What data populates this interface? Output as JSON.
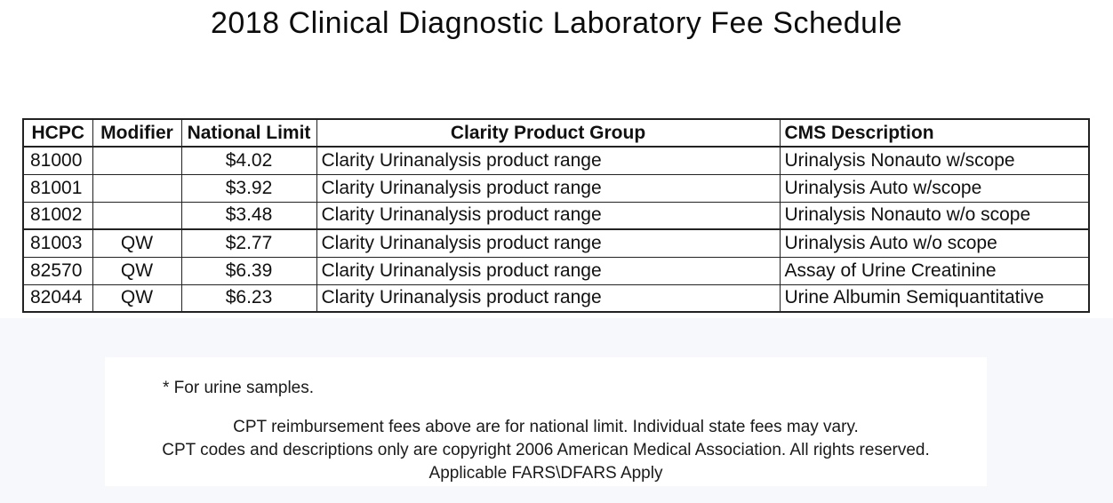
{
  "title": "2018 Clinical Diagnostic Laboratory Fee Schedule",
  "table": {
    "columns": [
      "HCPC",
      "Modifier",
      "National Limit",
      "Clarity Product Group",
      "CMS Description"
    ],
    "rows": [
      {
        "hcpc": "81000",
        "modifier": "",
        "national_limit": "$4.02",
        "product_group": "Clarity Urinanalysis product range",
        "cms_description": "Urinalysis Nonauto w/scope"
      },
      {
        "hcpc": "81001",
        "modifier": "",
        "national_limit": "$3.92",
        "product_group": "Clarity Urinanalysis product range",
        "cms_description": "Urinalysis Auto w/scope"
      },
      {
        "hcpc": "81002",
        "modifier": "",
        "national_limit": "$3.48",
        "product_group": "Clarity Urinanalysis product range",
        "cms_description": "Urinalysis Nonauto w/o scope"
      },
      {
        "hcpc": "81003",
        "modifier": "QW",
        "national_limit": "$2.77",
        "product_group": "Clarity Urinanalysis product range",
        "cms_description": "Urinalysis Auto w/o scope"
      },
      {
        "hcpc": "82570",
        "modifier": "QW",
        "national_limit": "$6.39",
        "product_group": "Clarity Urinanalysis product range",
        "cms_description": "Assay of Urine Creatinine"
      },
      {
        "hcpc": "82044",
        "modifier": "QW",
        "national_limit": "$6.23",
        "product_group": "Clarity Urinanalysis product range",
        "cms_description": "Urine Albumin Semiquantitative"
      }
    ]
  },
  "footnotes": {
    "urine_note": "* For urine samples.",
    "line1": "CPT reimbursement fees above are for national limit. Individual state fees may vary.",
    "line2": "CPT codes and descriptions only are copyright 2006 American Medical Association. All rights reserved.",
    "line3": "Applicable FARS\\DFARS Apply"
  },
  "colors": {
    "page_bg": "#ffffff",
    "panel_bg": "#f6f8fb",
    "card_bg": "#ffffff",
    "table_border": "#222222",
    "text": "#111111"
  }
}
